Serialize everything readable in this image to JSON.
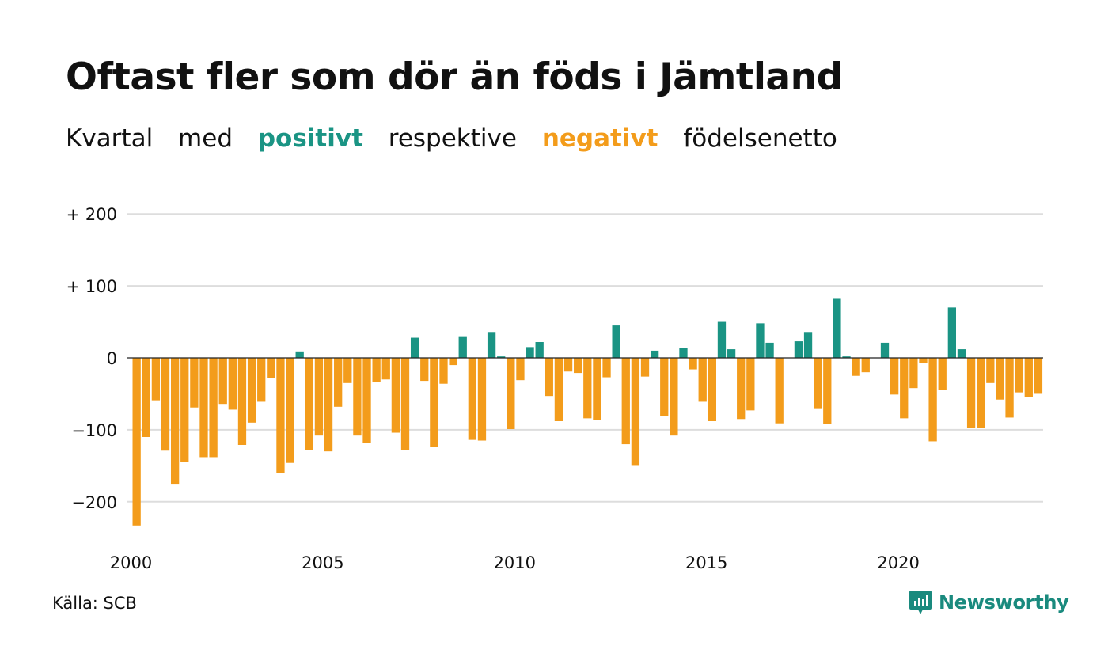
{
  "title": "Oftast fler som dör än föds i Jämtland",
  "subtitle": {
    "part1": "Kvartal",
    "part2": "med",
    "positive": "positivt",
    "part3": "respektive",
    "negative": "negativt",
    "part4": "födelsenetto"
  },
  "source": "Källa: SCB",
  "logo": {
    "text": "Newsworthy",
    "icon": "newsworthy-chart-icon"
  },
  "colors": {
    "positive": "#1a9484",
    "negative": "#f39c1b",
    "grid": "#dddddd",
    "zero": "#222222"
  },
  "chart_data": {
    "type": "bar",
    "x_start": "2000 Q1",
    "x_ticks": [
      "2000",
      "2005",
      "2010",
      "2015",
      "2020"
    ],
    "y_ticks": [
      "+ 200",
      "+ 100",
      "0",
      "−100",
      "−200"
    ],
    "y_tick_values": [
      200,
      100,
      0,
      -100,
      -200
    ],
    "ylim": [
      -235,
      200
    ],
    "values": [
      -233,
      -110,
      -59,
      -129,
      -175,
      -145,
      -69,
      -138,
      -138,
      -64,
      -72,
      -121,
      -90,
      -61,
      -28,
      -160,
      -146,
      9,
      -128,
      -108,
      -130,
      -68,
      -35,
      -108,
      -118,
      -34,
      -30,
      -104,
      -128,
      28,
      -32,
      -124,
      -36,
      -10,
      29,
      -114,
      -115,
      36,
      2,
      -99,
      -31,
      15,
      22,
      -53,
      -88,
      -19,
      -21,
      -84,
      -86,
      -27,
      45,
      -120,
      -149,
      -26,
      10,
      -81,
      -108,
      14,
      -16,
      -61,
      -88,
      50,
      12,
      -85,
      -73,
      48,
      21,
      -91,
      0,
      23,
      36,
      -70,
      -92,
      82,
      2,
      -25,
      -20,
      0,
      21,
      -51,
      -84,
      -42,
      -7,
      -116,
      -45,
      70,
      12,
      -97,
      -97,
      -35,
      -58,
      -83,
      -48,
      -54,
      -50
    ]
  }
}
